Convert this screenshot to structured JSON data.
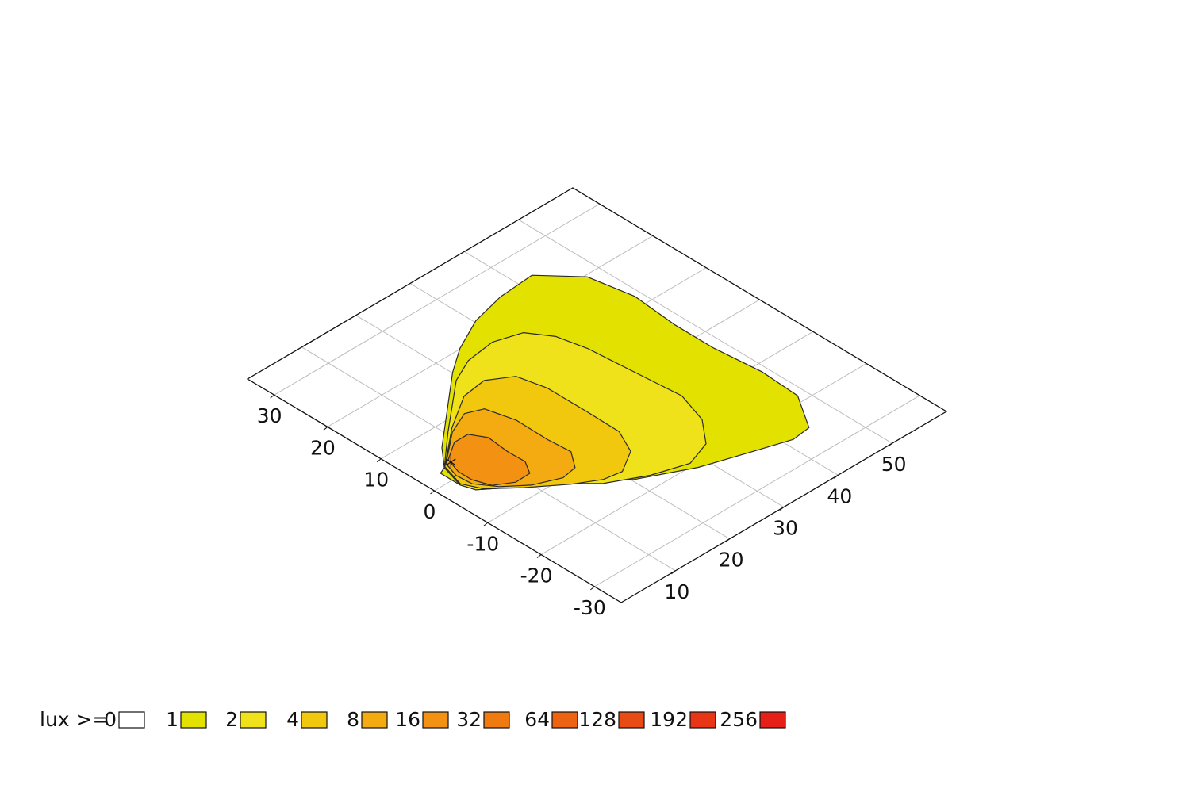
{
  "chart_data": {
    "type": "isolux",
    "xlim": [
      0,
      60
    ],
    "ylim": [
      -35,
      35
    ],
    "xticks": [
      10,
      20,
      30,
      40,
      50
    ],
    "yticks": [
      -30,
      -20,
      -10,
      0,
      10,
      20,
      30
    ],
    "grid": true,
    "legend_title": "lux >=",
    "levels": [
      0,
      1,
      2,
      4,
      8,
      16,
      32,
      64,
      128,
      192,
      256
    ],
    "colors": [
      "#ffffff",
      "#e3e100",
      "#efe21a",
      "#f2c80f",
      "#f4ab12",
      "#f39112",
      "#ee7a10",
      "#ec6411",
      "#e94b14",
      "#e83516",
      "#e62018"
    ],
    "luminaire": {
      "x": 6,
      "y": 3
    },
    "contours": [
      {
        "level": 1,
        "x": [
          4.5,
          7.4,
          20.1,
          24.5,
          30.3,
          36.3,
          42.6,
          47.5,
          48.9,
          48.2,
          48.2,
          49.0,
          48.6,
          44.7,
          41.4,
          35.9,
          28.2,
          20.4,
          12.4,
          7.3,
          4.0,
          3.3,
          3.3
        ],
        "y": [
          2.7,
          6.1,
          17.0,
          20.1,
          23.0,
          24.5,
          25.0,
          19.6,
          12.1,
          4.0,
          -3.4,
          -11.6,
          -18.7,
          -24.8,
          -25.2,
          -23.4,
          -20.8,
          -16.8,
          -10.1,
          -6.3,
          -3.7,
          -1.5,
          2.2
        ]
      },
      {
        "level": 2,
        "x": [
          4.5,
          10.4,
          19.2,
          23.4,
          28.5,
          32.9,
          35.3,
          36.4,
          37.1,
          37.8,
          36.0,
          32.6,
          28.1,
          22.5,
          16.8,
          12.4,
          7.3,
          4.0,
          3.3
        ],
        "y": [
          2.7,
          8.0,
          15.4,
          17.4,
          18.1,
          16.7,
          13.1,
          8.3,
          0.1,
          -8.0,
          -13.6,
          -17.8,
          -19.4,
          -17.6,
          -14.5,
          -10.1,
          -6.3,
          -3.7,
          -1.5
        ]
      },
      {
        "level": 4,
        "x": [
          4.7,
          11.4,
          17.5,
          21.8,
          25.4,
          26.5,
          26.5,
          26.4,
          24.4,
          20.5,
          17.5,
          13.8,
          8.8,
          4.9,
          3.5
        ],
        "y": [
          2.8,
          8.3,
          12.2,
          12.8,
          10.5,
          5.7,
          -1.7,
          -7.8,
          -12.0,
          -14.4,
          -13.9,
          -11.7,
          -7.8,
          -4.3,
          -1.3
        ]
      },
      {
        "level": 8,
        "x": [
          5.3,
          10.8,
          14.8,
          17.4,
          18.6,
          18.5,
          18.8,
          16.7,
          14.0,
          9.9,
          6.7,
          4.6,
          4.4
        ],
        "y": [
          3.2,
          7.6,
          9.4,
          8.3,
          3.6,
          -2.4,
          -6.5,
          -9.4,
          -9.9,
          -8.1,
          -5.4,
          -2.4,
          0.4
        ]
      },
      {
        "level": 16,
        "x": [
          6.1,
          9.4,
          11.9,
          13.3,
          12.9,
          13.0,
          11.6,
          8.9,
          6.2,
          5.2,
          5.2
        ],
        "y": [
          3.6,
          5.8,
          5.8,
          3.4,
          -0.7,
          -3.8,
          -6.1,
          -6.2,
          -4.5,
          -1.7,
          0.8
        ]
      }
    ]
  }
}
